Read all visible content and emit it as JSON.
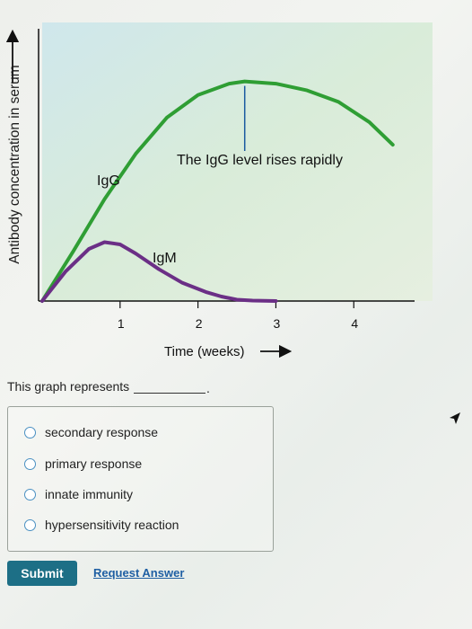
{
  "chart_data": {
    "type": "line",
    "xlabel": "Time (weeks)",
    "ylabel": "Antibody concentration in serum",
    "x_ticks": [
      "1",
      "2",
      "3",
      "4"
    ],
    "xlim": [
      0,
      4.55
    ],
    "ylim": [
      0,
      1
    ],
    "series": [
      {
        "name": "IgG",
        "color": "#2f9e34",
        "x": [
          0,
          0.4,
          0.8,
          1.2,
          1.6,
          2.0,
          2.4,
          2.6,
          3.0,
          3.4,
          3.8,
          4.2,
          4.5
        ],
        "y": [
          0,
          0.22,
          0.45,
          0.65,
          0.81,
          0.91,
          0.96,
          0.97,
          0.96,
          0.93,
          0.88,
          0.79,
          0.69
        ]
      },
      {
        "name": "IgM",
        "color": "#6b2f86",
        "x": [
          0,
          0.3,
          0.6,
          0.8,
          1.0,
          1.2,
          1.5,
          1.8,
          2.1,
          2.3,
          2.5,
          2.7,
          3.0
        ],
        "y": [
          0,
          0.13,
          0.23,
          0.26,
          0.25,
          0.21,
          0.14,
          0.08,
          0.04,
          0.02,
          0.006,
          0.002,
          0
        ]
      }
    ],
    "annotations": [
      {
        "text": "IgG",
        "series": "IgG"
      },
      {
        "text": "IgM",
        "series": "IgM"
      },
      {
        "text": "The IgG level rises rapidly",
        "x": 2.6
      }
    ]
  },
  "question": {
    "prompt": "This graph represents",
    "blank_end": "."
  },
  "options": [
    {
      "label": "secondary response"
    },
    {
      "label": "primary response"
    },
    {
      "label": "innate immunity"
    },
    {
      "label": "hypersensitivity reaction"
    }
  ],
  "actions": {
    "submit_label": "Submit",
    "request_label": "Request Answer"
  }
}
